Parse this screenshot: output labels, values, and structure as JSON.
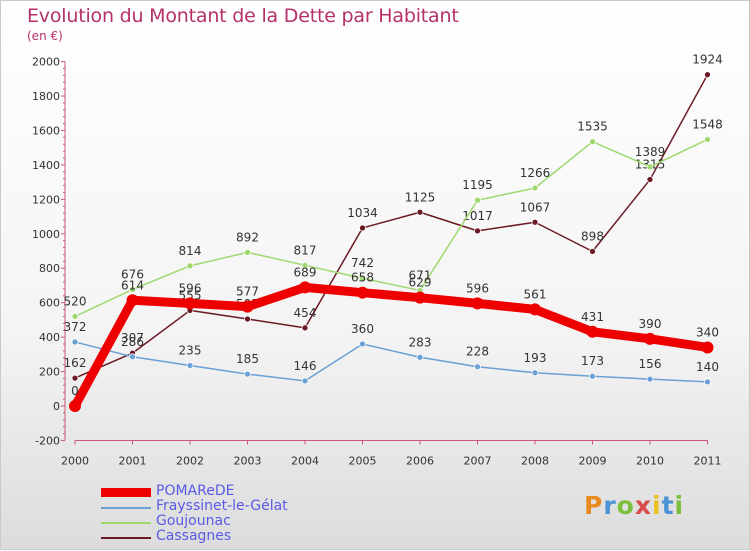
{
  "title": "Evolution du Montant de la Dette par Habitant",
  "unit": "(en €)",
  "logo": "Proxiti",
  "chart_data": {
    "type": "line",
    "title": "Evolution du Montant de la Dette par Habitant",
    "ylabel": "(en €)",
    "ylim": [
      -200,
      2000
    ],
    "yticks": [
      -200,
      0,
      200,
      400,
      600,
      800,
      1000,
      1200,
      1400,
      1600,
      1800,
      2000
    ],
    "x": [
      "2000",
      "2001",
      "2002",
      "2003",
      "2004",
      "2005",
      "2006",
      "2007",
      "2008",
      "2009",
      "2010",
      "2011"
    ],
    "grid": false,
    "legend": "bottom-left",
    "series": [
      {
        "name": "Cassagnes",
        "color": "#6b1a24",
        "values": [
          162,
          307,
          555,
          505,
          454,
          1034,
          1125,
          1017,
          1067,
          898,
          1315,
          1924
        ],
        "labels": [
          "162",
          "307",
          "555",
          "505",
          "454",
          "1034",
          "1125",
          "1017",
          "1067",
          "898",
          "1315",
          "1924"
        ]
      },
      {
        "name": "Goujounac",
        "color": "#9ed86e",
        "values": [
          520,
          676,
          814,
          892,
          817,
          742,
          671,
          1195,
          1266,
          1535,
          1389,
          1548
        ],
        "labels": [
          "520",
          "676",
          "814",
          "892",
          "817",
          "742",
          "671",
          "1195",
          "1266",
          "1535",
          "1389",
          "1548"
        ]
      },
      {
        "name": "Frayssinet-le-Gélat",
        "color": "#6aa0d4",
        "values": [
          372,
          286,
          235,
          185,
          146,
          360,
          283,
          228,
          193,
          173,
          156,
          140
        ],
        "labels": [
          "372",
          "286",
          "235",
          "185",
          "146",
          "360",
          "283",
          "228",
          "193",
          "173",
          "156",
          "140"
        ]
      },
      {
        "name": "POMAReDE",
        "color": "#ee0000",
        "values": [
          0,
          614,
          596,
          577,
          689,
          658,
          629,
          596,
          561,
          431,
          390,
          340
        ],
        "labels": [
          "0",
          "614",
          "596",
          "577",
          "689",
          "658",
          "629",
          "596",
          "561",
          "431",
          "390",
          "340"
        ]
      }
    ]
  }
}
